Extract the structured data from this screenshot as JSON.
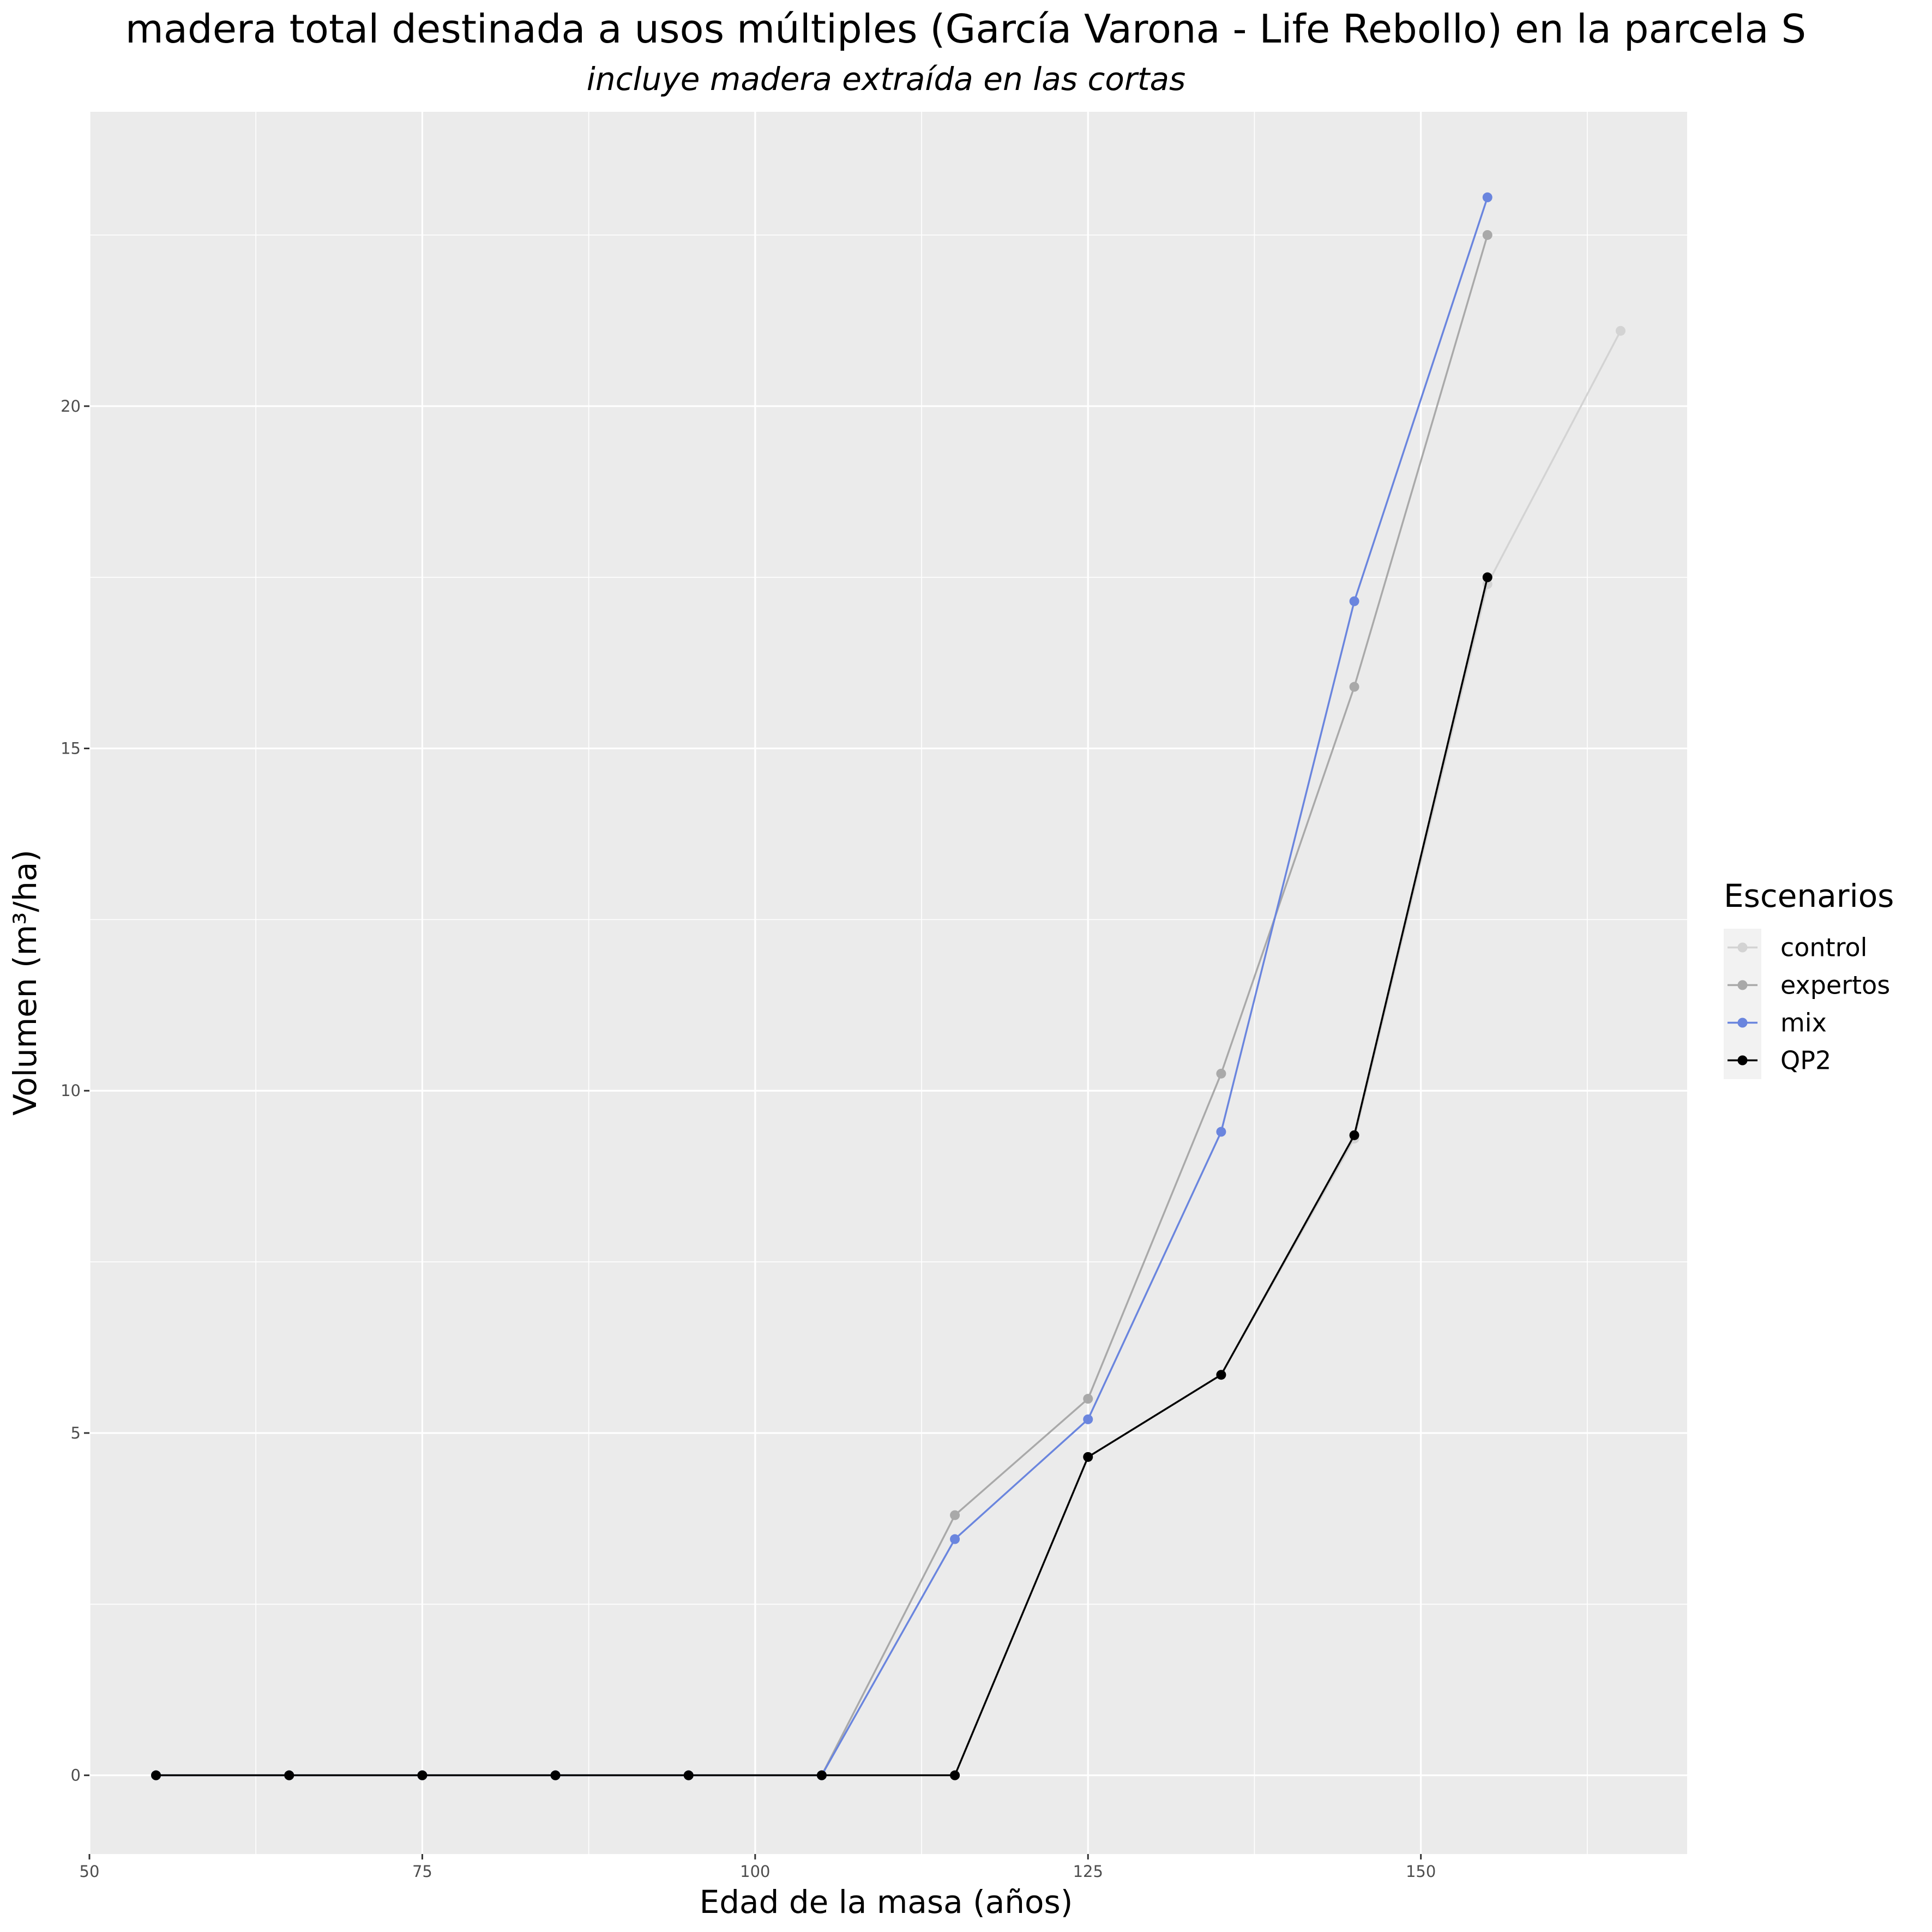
{
  "chart_data": {
    "type": "line",
    "title": "madera total destinada a usos múltiples (García Varona - Life Rebollo) en la parcela S",
    "subtitle": "incluye madera extraída en las cortas",
    "xlabel": "Edad de la masa (años)",
    "ylabel": "Volumen (m³/ha)",
    "xlim": [
      50,
      170
    ],
    "ylim": [
      -1.15,
      24.3
    ],
    "x_ticks": [
      50,
      75,
      100,
      125,
      150
    ],
    "y_ticks": [
      0,
      5,
      10,
      15,
      20
    ],
    "grid": true,
    "legend": {
      "title": "Escenarios",
      "position": "right"
    },
    "series": [
      {
        "name": "control",
        "color": "#d3d3d3",
        "x": [
          55,
          65,
          75,
          85,
          95,
          105,
          115,
          125,
          135,
          145,
          155,
          165
        ],
        "values": [
          0,
          0,
          0,
          0,
          0,
          0,
          0,
          4.65,
          5.85,
          9.3,
          17.4,
          21.1
        ]
      },
      {
        "name": "expertos",
        "color": "#a9a9a9",
        "x": [
          55,
          65,
          75,
          85,
          95,
          105,
          115,
          125,
          135,
          145,
          155
        ],
        "values": [
          0,
          0,
          0,
          0,
          0,
          0,
          3.8,
          5.5,
          10.25,
          15.9,
          22.5
        ]
      },
      {
        "name": "mix",
        "color": "#6a85de",
        "x": [
          55,
          65,
          75,
          85,
          95,
          105,
          115,
          125,
          135,
          145,
          155
        ],
        "values": [
          0,
          0,
          0,
          0,
          0,
          0,
          3.45,
          5.2,
          9.4,
          17.15,
          23.05
        ]
      },
      {
        "name": "QP2",
        "color": "#000000",
        "x": [
          55,
          65,
          75,
          85,
          95,
          105,
          115,
          125,
          135,
          145,
          155
        ],
        "values": [
          0,
          0,
          0,
          0,
          0,
          0,
          0,
          4.65,
          5.85,
          9.35,
          17.5
        ]
      }
    ]
  }
}
